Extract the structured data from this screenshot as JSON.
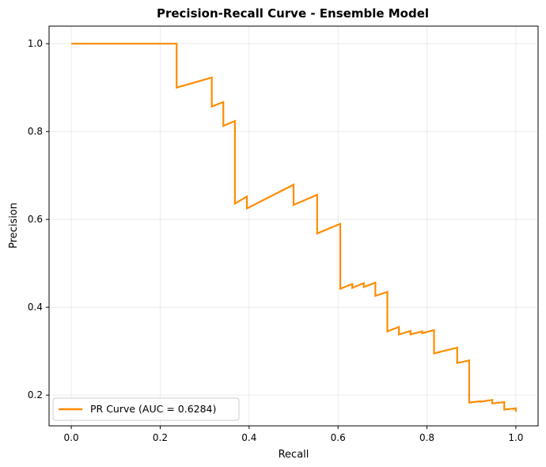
{
  "chart_data": {
    "type": "line",
    "title": "Precision-Recall Curve - Ensemble Model",
    "xlabel": "Recall",
    "ylabel": "Precision",
    "xlim": [
      -0.05,
      1.05
    ],
    "ylim": [
      0.13,
      1.04
    ],
    "xticks": [
      0.0,
      0.2,
      0.4,
      0.6,
      0.8,
      1.0
    ],
    "yticks": [
      0.2,
      0.4,
      0.6,
      0.8,
      1.0
    ],
    "xtick_labels": [
      "0.0",
      "0.2",
      "0.4",
      "0.6",
      "0.8",
      "1.0"
    ],
    "ytick_labels": [
      "0.2",
      "0.4",
      "0.6",
      "0.8",
      "1.0"
    ],
    "grid": true,
    "legend_position": "lower-left",
    "series": [
      {
        "name": "PR Curve (AUC = 0.6284)",
        "color": "#ff8c00",
        "points": [
          [
            0.0,
            1.0
          ],
          [
            0.237,
            1.0
          ],
          [
            0.237,
            0.9
          ],
          [
            0.316,
            0.923
          ],
          [
            0.316,
            0.857
          ],
          [
            0.342,
            0.867
          ],
          [
            0.342,
            0.813
          ],
          [
            0.368,
            0.824
          ],
          [
            0.368,
            0.636
          ],
          [
            0.395,
            0.652
          ],
          [
            0.395,
            0.625
          ],
          [
            0.5,
            0.679
          ],
          [
            0.5,
            0.633
          ],
          [
            0.553,
            0.656
          ],
          [
            0.553,
            0.568
          ],
          [
            0.605,
            0.59
          ],
          [
            0.605,
            0.442
          ],
          [
            0.632,
            0.453
          ],
          [
            0.632,
            0.444
          ],
          [
            0.658,
            0.455
          ],
          [
            0.658,
            0.446
          ],
          [
            0.684,
            0.456
          ],
          [
            0.684,
            0.426
          ],
          [
            0.711,
            0.435
          ],
          [
            0.711,
            0.345
          ],
          [
            0.737,
            0.355
          ],
          [
            0.737,
            0.338
          ],
          [
            0.763,
            0.346
          ],
          [
            0.763,
            0.338
          ],
          [
            0.789,
            0.345
          ],
          [
            0.789,
            0.341
          ],
          [
            0.816,
            0.348
          ],
          [
            0.816,
            0.295
          ],
          [
            0.868,
            0.308
          ],
          [
            0.868,
            0.273
          ],
          [
            0.895,
            0.279
          ],
          [
            0.895,
            0.183
          ],
          [
            0.921,
            0.186
          ],
          [
            0.921,
            0.185
          ],
          [
            0.947,
            0.189
          ],
          [
            0.947,
            0.181
          ],
          [
            0.974,
            0.184
          ],
          [
            0.974,
            0.167
          ],
          [
            1.0,
            0.17
          ],
          [
            1.0,
            0.162
          ]
        ]
      }
    ]
  }
}
